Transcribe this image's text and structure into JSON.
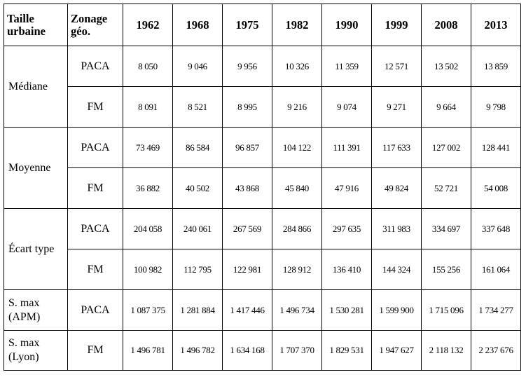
{
  "header": {
    "col0": "Taille urbaine",
    "col1": "Zonage géo.",
    "years": [
      "1962",
      "1968",
      "1975",
      "1982",
      "1990",
      "1999",
      "2008",
      "2013"
    ]
  },
  "groups": [
    {
      "label": "Médiane",
      "rows": [
        {
          "zone": "PACA",
          "values": [
            "8 050",
            "9 046",
            "9 956",
            "10 326",
            "11 359",
            "12 571",
            "13 502",
            "13 859"
          ]
        },
        {
          "zone": "FM",
          "values": [
            "8 091",
            "8 521",
            "8 995",
            "9 216",
            "9 074",
            "9 271",
            "9 664",
            "9 798"
          ]
        }
      ]
    },
    {
      "label": "Moyenne",
      "rows": [
        {
          "zone": "PACA",
          "values": [
            "73 469",
            "86 584",
            "96 857",
            "104 122",
            "111 391",
            "117 633",
            "127 002",
            "128 441"
          ]
        },
        {
          "zone": "FM",
          "values": [
            "36 882",
            "40 502",
            "43 868",
            "45 840",
            "47 916",
            "49 824",
            "52 721",
            "54 008"
          ]
        }
      ]
    },
    {
      "label": "Écart type",
      "rows": [
        {
          "zone": "PACA",
          "values": [
            "204 058",
            "240 061",
            "267 569",
            "284 866",
            "297 635",
            "311 983",
            "334 697",
            "337 648"
          ]
        },
        {
          "zone": "FM",
          "values": [
            "100 982",
            "112 795",
            "122 981",
            "128 912",
            "136 410",
            "144 324",
            "155 256",
            "161 064"
          ]
        }
      ]
    },
    {
      "label": "S. max (APM)",
      "rows": [
        {
          "zone": "PACA",
          "values": [
            "1 087 375",
            "1 281 884",
            "1 417 446",
            "1 496 734",
            "1 530 281",
            "1 599 900",
            "1 715 096",
            "1 734 277"
          ]
        }
      ]
    },
    {
      "label": "S. max (Lyon)",
      "rows": [
        {
          "zone": "FM",
          "values": [
            "1 496 781",
            "1 496 782",
            "1 634 168",
            "1 707 370",
            "1 829 531",
            "1 947 627",
            "2 118 132",
            "2 237 676"
          ]
        }
      ]
    }
  ]
}
